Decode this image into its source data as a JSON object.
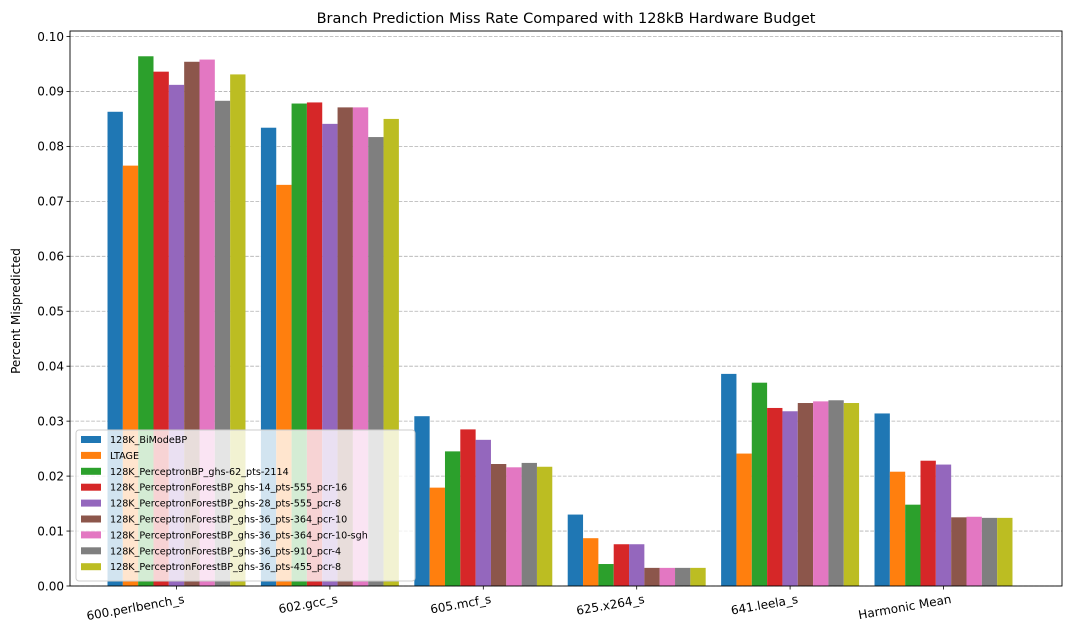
{
  "chart_data": {
    "type": "bar",
    "title": "Branch Prediction Miss Rate Compared with 128kB Hardware Budget",
    "xlabel": "",
    "ylabel": "Percent Mispredicted",
    "ylim": [
      0,
      0.101
    ],
    "yticks": [
      "0.00",
      "0.01",
      "0.02",
      "0.03",
      "0.04",
      "0.05",
      "0.06",
      "0.07",
      "0.08",
      "0.09",
      "0.10"
    ],
    "grid": "y-dashed",
    "legend_position": "lower-left",
    "categories": [
      "600.perlbench_s",
      "602.gcc_s",
      "605.mcf_s",
      "625.x264_s",
      "641.leela_s",
      "Harmonic Mean"
    ],
    "series": [
      {
        "name": "128K_BiModeBP",
        "color": "#1f77b4",
        "values": [
          0.0863,
          0.0834,
          0.0309,
          0.013,
          0.0386,
          0.0314
        ]
      },
      {
        "name": "LTAGE",
        "color": "#ff7f0e",
        "values": [
          0.0765,
          0.073,
          0.0179,
          0.0087,
          0.0241,
          0.0208
        ]
      },
      {
        "name": "128K_PerceptronBP_ghs-62_pts-2114",
        "color": "#2ca02c",
        "values": [
          0.0964,
          0.0878,
          0.0245,
          0.004,
          0.037,
          0.0148
        ]
      },
      {
        "name": "128K_PerceptronForestBP_ghs-14_pts-555_pcr-16",
        "color": "#d62728",
        "values": [
          0.0936,
          0.088,
          0.0285,
          0.0076,
          0.0324,
          0.0228
        ]
      },
      {
        "name": "128K_PerceptronForestBP_ghs-28_pts-555_pcr-8",
        "color": "#9467bd",
        "values": [
          0.0912,
          0.0841,
          0.0266,
          0.0076,
          0.0318,
          0.0221
        ]
      },
      {
        "name": "128K_PerceptronForestBP_ghs-36_pts-364_pcr-10",
        "color": "#8c564b",
        "values": [
          0.0954,
          0.0871,
          0.0222,
          0.0033,
          0.0333,
          0.0125
        ]
      },
      {
        "name": "128K_PerceptronForestBP_ghs-36_pts-364_pcr-10-sgh",
        "color": "#e377c2",
        "values": [
          0.0958,
          0.0871,
          0.0216,
          0.0033,
          0.0336,
          0.0126
        ]
      },
      {
        "name": "128K_PerceptronForestBP_ghs-36_pts-910_pcr-4",
        "color": "#7f7f7f",
        "values": [
          0.0883,
          0.0817,
          0.0224,
          0.0033,
          0.0338,
          0.0124
        ]
      },
      {
        "name": "128K_PerceptronForestBP_ghs-36_pts-455_pcr-8",
        "color": "#bcbd22",
        "values": [
          0.0931,
          0.085,
          0.0217,
          0.0033,
          0.0333,
          0.0124
        ]
      }
    ]
  }
}
